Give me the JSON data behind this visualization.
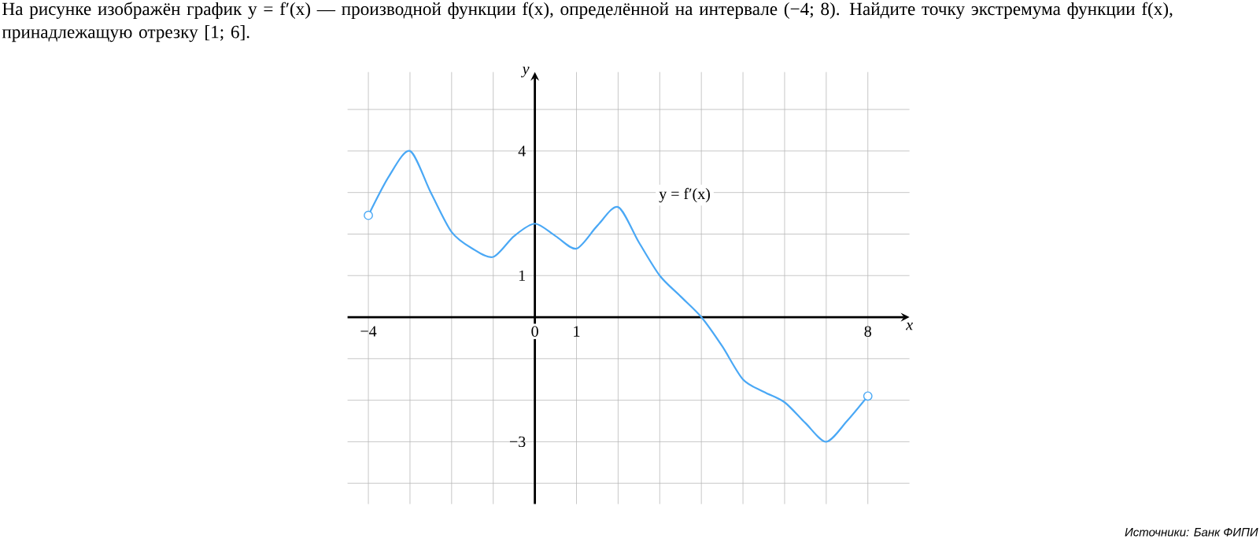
{
  "chart_data": {
    "type": "line",
    "title": "На рисунке изображён график y = f′(x) — производной функции f(x), определённой на интервале (−4; 8). Найдите точку экстремума функции f(x), принадлежащую отрезку [1; 6].",
    "xlabel": "x",
    "ylabel": "y",
    "xlim": [
      -4.5,
      9
    ],
    "ylim": [
      -4.5,
      5.9
    ],
    "xticks": [
      {
        "value": -4,
        "label": "−4"
      },
      {
        "value": -3,
        "label": null
      },
      {
        "value": -2,
        "label": null
      },
      {
        "value": -1,
        "label": null
      },
      {
        "value": 0,
        "label": "0"
      },
      {
        "value": 1,
        "label": "1"
      },
      {
        "value": 2,
        "label": null
      },
      {
        "value": 3,
        "label": null
      },
      {
        "value": 4,
        "label": null
      },
      {
        "value": 5,
        "label": null
      },
      {
        "value": 6,
        "label": null
      },
      {
        "value": 7,
        "label": null
      },
      {
        "value": 8,
        "label": "8"
      }
    ],
    "yticks": [
      {
        "value": -4,
        "label": null
      },
      {
        "value": -3,
        "label": "−3"
      },
      {
        "value": -2,
        "label": null
      },
      {
        "value": -1,
        "label": null
      },
      {
        "value": 0,
        "label": null
      },
      {
        "value": 1,
        "label": "1"
      },
      {
        "value": 2,
        "label": null
      },
      {
        "value": 3,
        "label": null
      },
      {
        "value": 4,
        "label": "4"
      },
      {
        "value": 5,
        "label": null
      }
    ],
    "grid": true,
    "series": [
      {
        "color": "#4aa8f5",
        "x": [
          -4,
          -3.5,
          -3,
          -2.5,
          -2,
          -1.5,
          -1,
          -0.5,
          0,
          0.5,
          1,
          1.5,
          2,
          2.5,
          3,
          3.5,
          4,
          4.5,
          5,
          5.5,
          6,
          6.5,
          7,
          7.5,
          8
        ],
        "values": [
          2.45,
          3.4,
          4,
          3,
          2.05,
          1.65,
          1.45,
          1.95,
          2.25,
          1.95,
          1.65,
          2.2,
          2.65,
          1.8,
          1,
          0.5,
          0,
          -0.7,
          -1.5,
          -1.8,
          -2.05,
          -2.55,
          -3,
          -2.5,
          -1.9
        ]
      },
      {
        "type": "scatter",
        "marker": "circle",
        "color": "#4aa8f5",
        "x": [
          -4,
          8
        ],
        "values": [
          2.45,
          -1.9
        ]
      }
    ],
    "annotations": [
      "y = f′(x)",
      "Источники: Банк ФИПИ"
    ]
  }
}
